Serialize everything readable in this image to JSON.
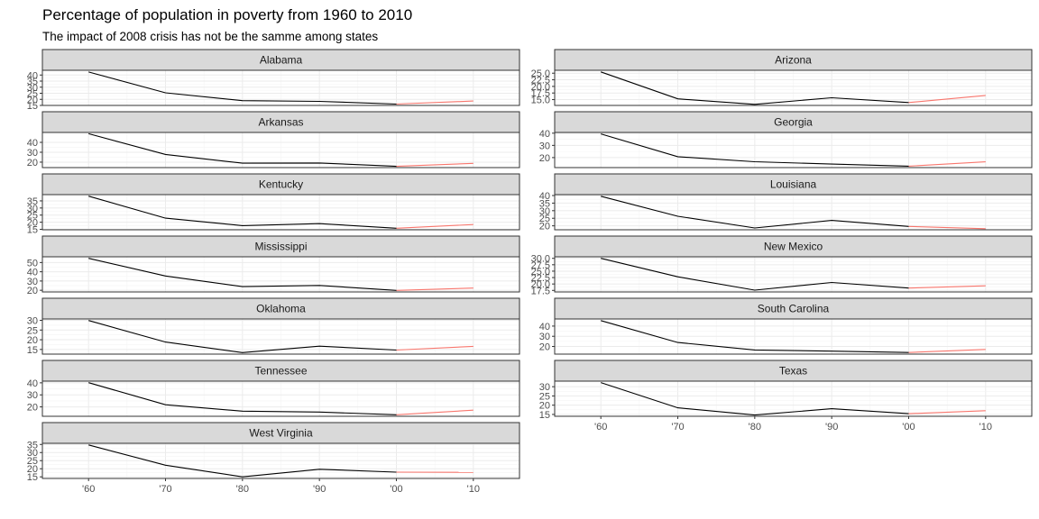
{
  "chart_data": {
    "type": "line",
    "title": "Percentage of population in poverty from 1960 to 2010",
    "subtitle": "The impact of 2008 crisis has not be the samme among states",
    "x": [
      1960,
      1970,
      1980,
      1990,
      2000,
      2010
    ],
    "x_tick_labels": [
      "'60",
      "'70",
      "'80",
      "'90",
      "'00",
      "'10"
    ],
    "highlight_segment": {
      "from": 2000,
      "to": 2010,
      "color": "#f8766d"
    },
    "line_color": "#000000",
    "grid": true,
    "facets": [
      {
        "name": "Alabama",
        "values": [
          42.5,
          25.4,
          18.9,
          18.3,
          16.1,
          18.6
        ],
        "y_ticks": [
          15,
          20,
          25,
          30,
          35,
          40
        ],
        "y_tick_labels": [
          "15",
          "20",
          "25",
          "30",
          "35",
          "40"
        ],
        "ylim": [
          15,
          43.9
        ]
      },
      {
        "name": "Arizona",
        "values": [
          25.5,
          15.3,
          13.2,
          15.7,
          13.9,
          16.6
        ],
        "y_ticks": [
          15,
          17.5,
          20,
          22.5,
          25
        ],
        "y_tick_labels": [
          "15.0",
          "17.5",
          "20.0",
          "22.5",
          "25.0"
        ],
        "ylim": [
          12.8,
          26.1
        ]
      },
      {
        "name": "Arkansas",
        "values": [
          48.7,
          27.8,
          19.0,
          19.1,
          15.8,
          18.8
        ],
        "y_ticks": [
          20,
          30,
          40
        ],
        "y_tick_labels": [
          "20",
          "30",
          "40"
        ],
        "ylim": [
          14.5,
          50
        ]
      },
      {
        "name": "Georgia",
        "values": [
          39.4,
          20.7,
          16.6,
          14.7,
          13.0,
          16.5
        ],
        "y_ticks": [
          20,
          30,
          40
        ],
        "y_tick_labels": [
          "20",
          "30",
          "40"
        ],
        "ylim": [
          11.8,
          40.6
        ]
      },
      {
        "name": "Kentucky",
        "values": [
          38.3,
          22.9,
          17.6,
          19.0,
          15.8,
          18.4
        ],
        "y_ticks": [
          15,
          20,
          25,
          30,
          35
        ],
        "y_tick_labels": [
          "15",
          "20",
          "25",
          "30",
          "35"
        ],
        "ylim": [
          14.7,
          39.4
        ]
      },
      {
        "name": "Louisiana",
        "values": [
          39.5,
          26.3,
          18.6,
          23.6,
          19.6,
          18.1
        ],
        "y_ticks": [
          20,
          25,
          30,
          35,
          40
        ],
        "y_tick_labels": [
          "20",
          "25",
          "30",
          "35",
          "40"
        ],
        "ylim": [
          17.4,
          40.6
        ]
      },
      {
        "name": "Mississippi",
        "values": [
          54.5,
          35.4,
          23.9,
          25.2,
          19.9,
          22.4
        ],
        "y_ticks": [
          20,
          30,
          40,
          50
        ],
        "y_tick_labels": [
          "20",
          "30",
          "40",
          "50"
        ],
        "ylim": [
          18.2,
          56.2
        ]
      },
      {
        "name": "New Mexico",
        "values": [
          30.0,
          22.8,
          17.6,
          20.6,
          18.4,
          19.3
        ],
        "y_ticks": [
          17.5,
          20,
          22.5,
          25,
          27.5,
          30
        ],
        "y_tick_labels": [
          "17.5",
          "20.0",
          "22.5",
          "25.0",
          "27.5",
          "30.0"
        ],
        "ylim": [
          16.9,
          30.6
        ]
      },
      {
        "name": "Oklahoma",
        "values": [
          29.9,
          18.8,
          13.4,
          16.7,
          14.7,
          16.6
        ],
        "y_ticks": [
          15,
          20,
          25,
          30
        ],
        "y_tick_labels": [
          "15",
          "20",
          "25",
          "30"
        ],
        "ylim": [
          12.6,
          30.7
        ]
      },
      {
        "name": "South Carolina",
        "values": [
          45.4,
          23.9,
          16.6,
          15.4,
          14.1,
          17.1
        ],
        "y_ticks": [
          20,
          30,
          40
        ],
        "y_tick_labels": [
          "20",
          "30",
          "40"
        ],
        "ylim": [
          12.5,
          47
        ]
      },
      {
        "name": "Tennessee",
        "values": [
          40.1,
          21.8,
          16.5,
          15.7,
          13.5,
          17.3
        ],
        "y_ticks": [
          20,
          30,
          40
        ],
        "y_tick_labels": [
          "20",
          "30",
          "40"
        ],
        "ylim": [
          12.2,
          41.4
        ]
      },
      {
        "name": "Texas",
        "values": [
          32.2,
          18.6,
          14.7,
          18.1,
          15.4,
          17.0
        ],
        "y_ticks": [
          15,
          20,
          25,
          30
        ],
        "y_tick_labels": [
          "15",
          "20",
          "25",
          "30"
        ],
        "ylim": [
          14,
          33
        ]
      },
      {
        "name": "West Virginia",
        "values": [
          34.7,
          22.2,
          15.0,
          19.7,
          17.9,
          17.8
        ],
        "y_ticks": [
          15,
          20,
          25,
          30,
          35
        ],
        "y_tick_labels": [
          "15",
          "20",
          "25",
          "30",
          "35"
        ],
        "ylim": [
          14,
          35.7
        ]
      }
    ]
  }
}
